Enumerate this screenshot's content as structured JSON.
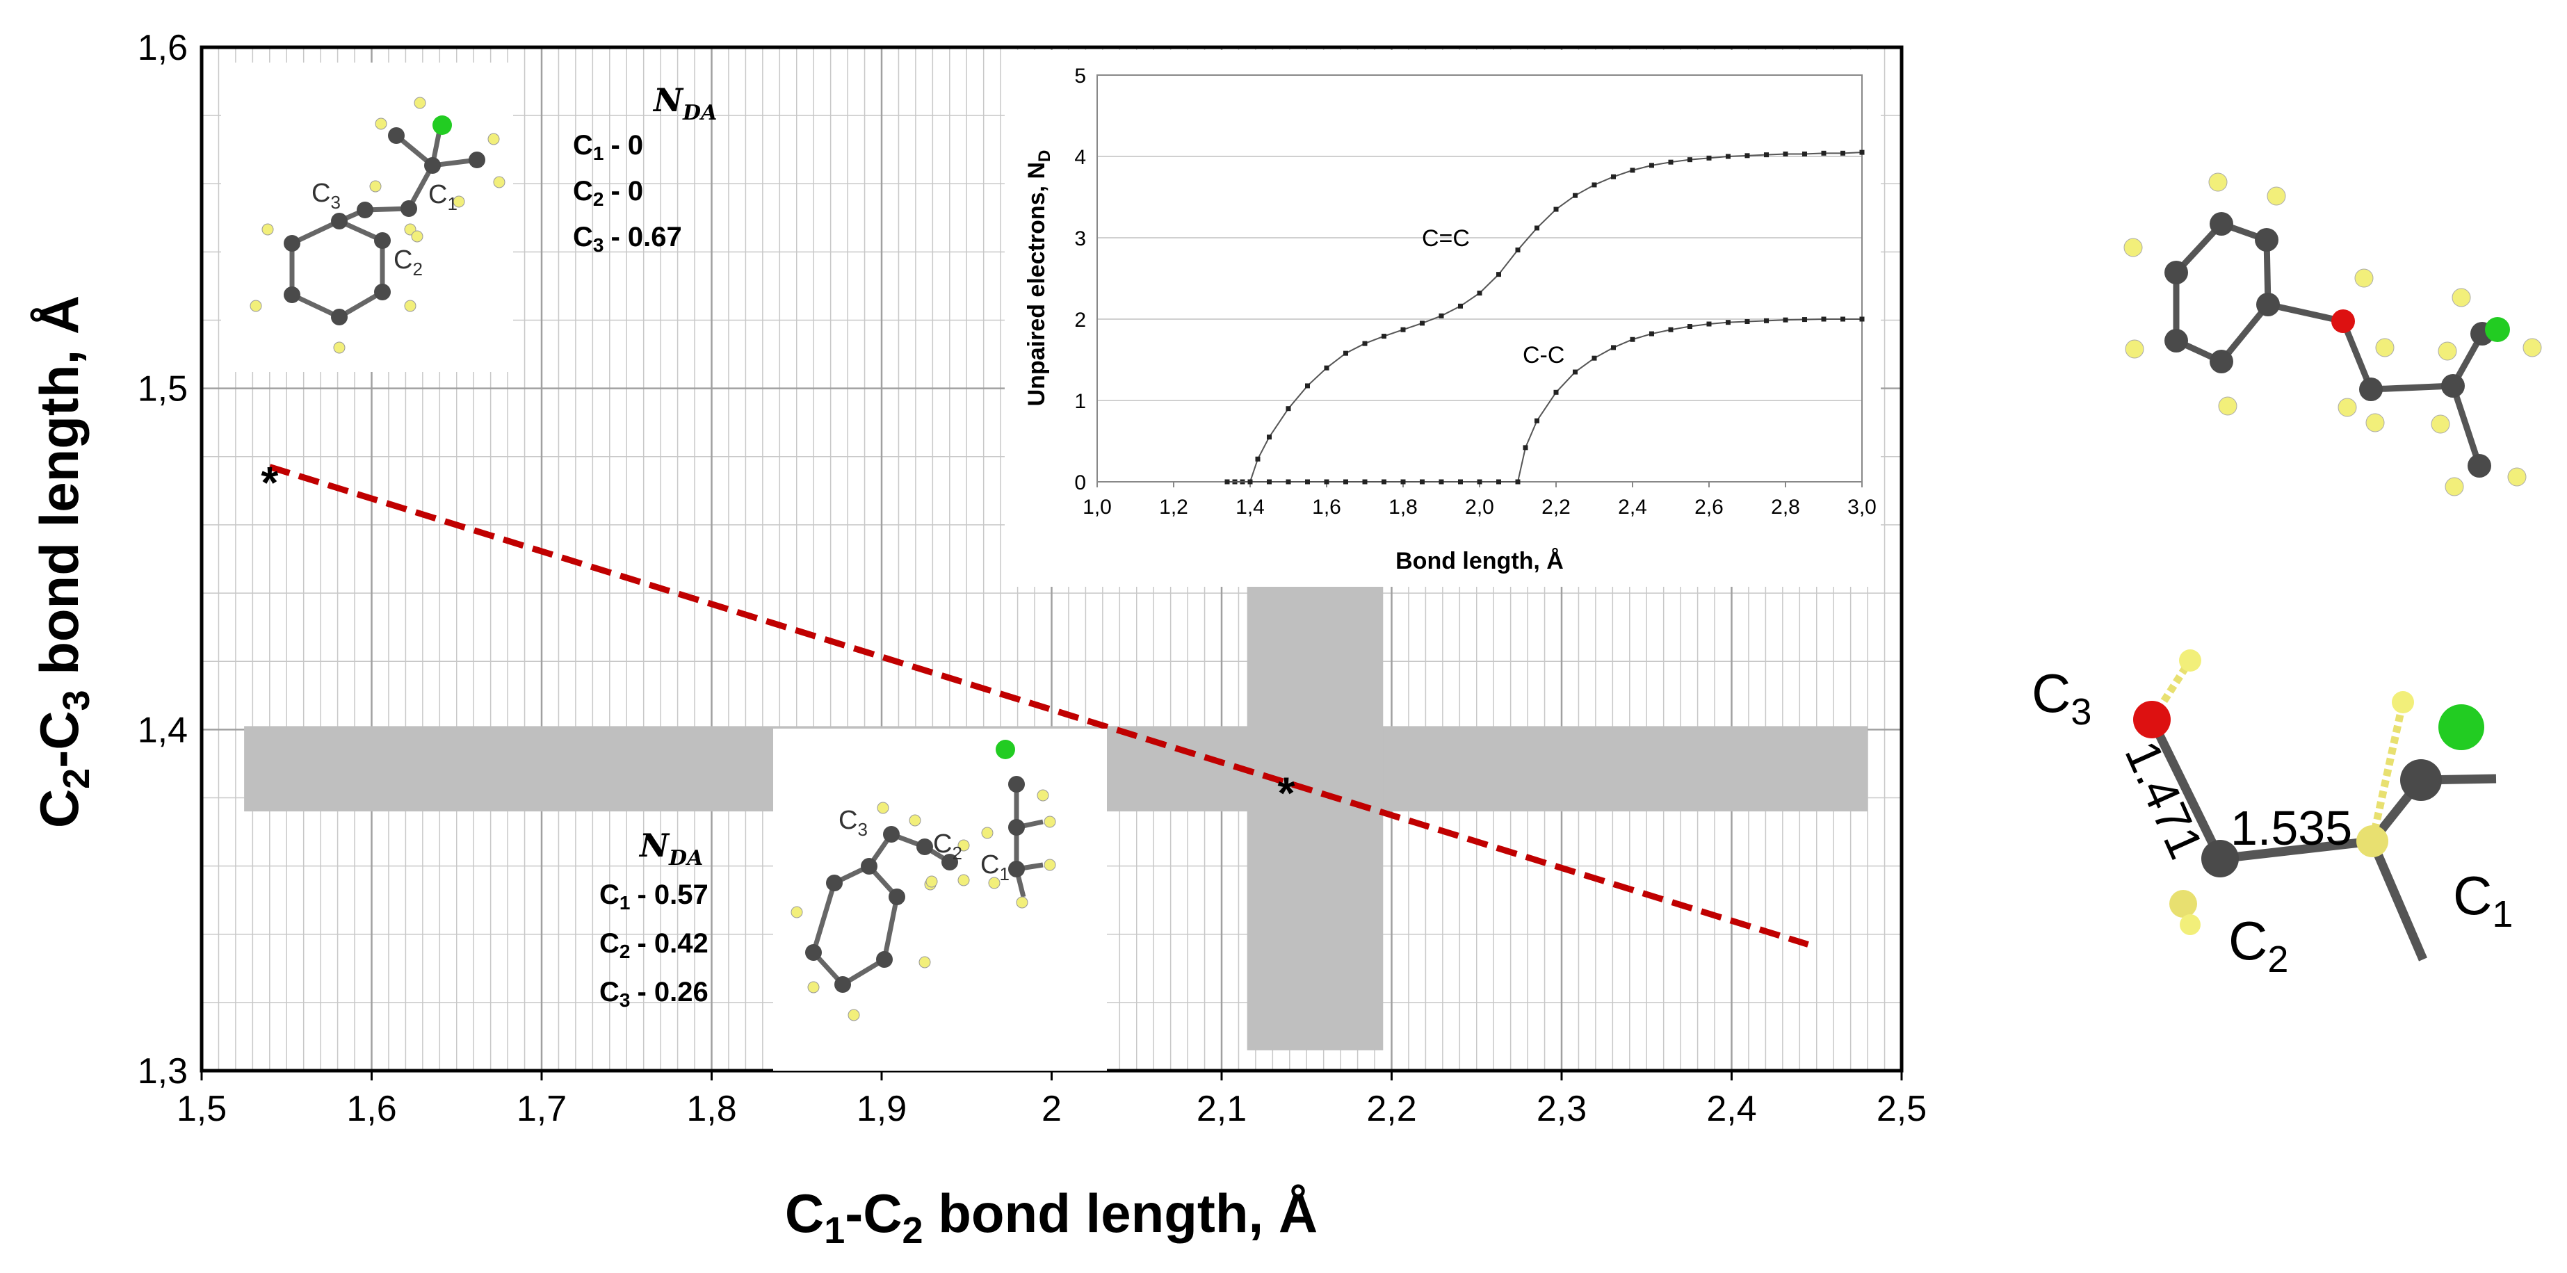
{
  "colors": {
    "trend": "#c00000",
    "band": "#bfbfbf",
    "grid": "#c8c8c8",
    "inset_line": "#555555",
    "carbon": "#4a4a4a",
    "hydrogen": "#f2ef7a",
    "chlorine": "#22cc22",
    "oxygen": "#dd1111"
  },
  "main": {
    "ylabel": {
      "pre": "C",
      "s1": "2",
      "mid": "-C",
      "s2": "3",
      "post": " bond length, Å"
    },
    "xlabel": {
      "pre": "C",
      "s1": "1",
      "mid": "-C",
      "s2": "2",
      "post": " bond length, Å"
    },
    "y_ticks": [
      "1,3",
      "1,4",
      "1,5",
      "1,6"
    ],
    "x_ticks": [
      "1,5",
      "1,6",
      "1,7",
      "1,8",
      "1,9",
      "2",
      "2,1",
      "2,2",
      "2,3",
      "2,4",
      "2,5"
    ],
    "star_marker": "*"
  },
  "nda_top": {
    "title": "N",
    "title_sub": "DA",
    "rows": [
      {
        "atom": "C",
        "idx": "1",
        "value": "-  0"
      },
      {
        "atom": "C",
        "idx": "2",
        "value": "-  0"
      },
      {
        "atom": "C",
        "idx": "3",
        "value": "-  0.67"
      }
    ]
  },
  "nda_bottom": {
    "title": "N",
    "title_sub": "DA",
    "rows": [
      {
        "atom": "C",
        "idx": "1",
        "value": "-  0.57"
      },
      {
        "atom": "C",
        "idx": "2",
        "value": "-  0.42"
      },
      {
        "atom": "C",
        "idx": "3",
        "value": "-  0.26"
      }
    ]
  },
  "mol_top_labels": {
    "c3": "C",
    "c3_sub": "3",
    "c1": "C",
    "c1_sub": "1",
    "c2": "C",
    "c2_sub": "2"
  },
  "mol_bottom_labels": {
    "c3": "C",
    "c3_sub": "3",
    "c2": "C",
    "c2_sub": "2",
    "c1": "C",
    "c1_sub": "1"
  },
  "right_geometry": {
    "c3": "C",
    "c3_sub": "3",
    "c2": "C",
    "c2_sub": "2",
    "c1": "C",
    "c1_sub": "1",
    "bond_23": "1.471",
    "bond_12": "1.535"
  },
  "chart_data": [
    {
      "type": "line",
      "xlabel": "C1-C2 bond length, Å",
      "ylabel": "C2-C3 bond length, Å",
      "xlim": [
        1.5,
        2.5
      ],
      "ylim": [
        1.3,
        1.6
      ],
      "x_ticks": [
        1.5,
        1.6,
        1.7,
        1.8,
        1.9,
        2.0,
        2.1,
        2.2,
        2.3,
        2.4,
        2.5
      ],
      "y_ticks": [
        1.3,
        1.4,
        1.5,
        1.6
      ],
      "grid": true,
      "series": [
        {
          "style": "dashed",
          "x": [
            1.54,
            2.445
          ],
          "y": [
            1.477,
            1.337
          ]
        }
      ],
      "markers": [
        {
          "x": 1.54,
          "y": 1.474,
          "label": "*"
        },
        {
          "x": 2.138,
          "y": 1.383,
          "label": "*"
        }
      ],
      "shaded_bands": [
        {
          "orientation": "horizontal",
          "y": [
            1.376,
            1.401
          ],
          "x": [
            1.525,
            2.48
          ]
        },
        {
          "orientation": "vertical",
          "x": [
            2.115,
            2.195
          ],
          "y": [
            1.306,
            1.443
          ]
        }
      ]
    },
    {
      "type": "line",
      "title": "",
      "xlabel": "Bond length, Å",
      "ylabel": "Unpaired electrons, N",
      "ylabel_sub": "D",
      "xlim": [
        1.0,
        3.0
      ],
      "ylim": [
        0,
        5
      ],
      "x_ticks": [
        "1,0",
        "1,2",
        "1,4",
        "1,6",
        "1,8",
        "2,0",
        "2,2",
        "2,4",
        "2,6",
        "2,8",
        "3,0"
      ],
      "y_ticks": [
        "0",
        "1",
        "2",
        "3",
        "4",
        "5"
      ],
      "grid": true,
      "series": [
        {
          "name": "C=C",
          "x": [
            1.34,
            1.36,
            1.38,
            1.4,
            1.42,
            1.45,
            1.5,
            1.55,
            1.6,
            1.65,
            1.7,
            1.75,
            1.8,
            1.85,
            1.9,
            1.95,
            2.0,
            2.05,
            2.1,
            2.15,
            2.2,
            2.25,
            2.3,
            2.35,
            2.4,
            2.45,
            2.5,
            2.55,
            2.6,
            2.65,
            2.7,
            2.75,
            2.8,
            2.85,
            2.9,
            2.95,
            3.0
          ],
          "y": [
            0,
            0,
            0,
            0.0,
            0.28,
            0.55,
            0.9,
            1.18,
            1.4,
            1.58,
            1.7,
            1.79,
            1.87,
            1.95,
            2.04,
            2.16,
            2.32,
            2.55,
            2.85,
            3.12,
            3.35,
            3.52,
            3.65,
            3.75,
            3.83,
            3.89,
            3.93,
            3.96,
            3.98,
            4.0,
            4.01,
            4.02,
            4.03,
            4.03,
            4.04,
            4.04,
            4.05
          ]
        },
        {
          "name": "C-C",
          "x": [
            1.34,
            1.4,
            1.45,
            1.5,
            1.55,
            1.6,
            1.65,
            1.7,
            1.75,
            1.8,
            1.85,
            1.9,
            1.95,
            2.0,
            2.05,
            2.1,
            2.12,
            2.15,
            2.2,
            2.25,
            2.3,
            2.35,
            2.4,
            2.45,
            2.5,
            2.55,
            2.6,
            2.65,
            2.7,
            2.75,
            2.8,
            2.85,
            2.9,
            2.95,
            3.0
          ],
          "y": [
            0,
            0,
            0,
            0,
            0,
            0,
            0,
            0,
            0,
            0,
            0,
            0,
            0,
            0,
            0,
            0,
            0.42,
            0.75,
            1.1,
            1.35,
            1.52,
            1.65,
            1.75,
            1.82,
            1.87,
            1.91,
            1.94,
            1.96,
            1.97,
            1.98,
            1.99,
            1.995,
            2.0,
            2.0,
            2.0
          ]
        }
      ]
    }
  ]
}
